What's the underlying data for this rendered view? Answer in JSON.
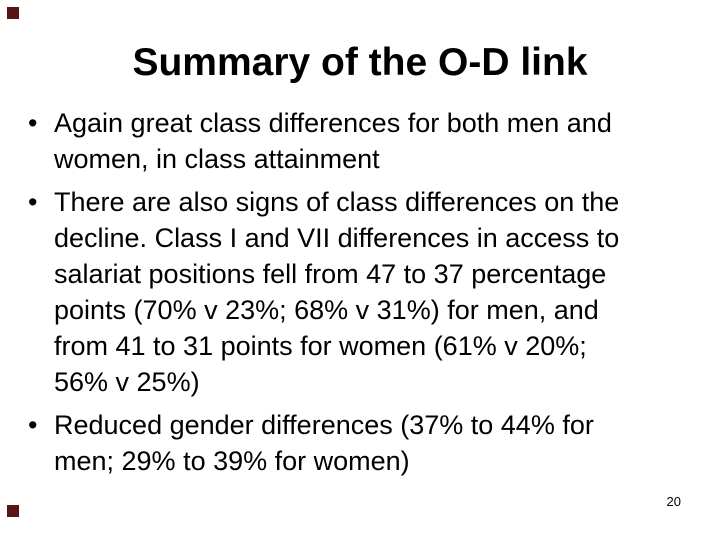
{
  "slide": {
    "title": "Summary of the O-D link",
    "bullet_char": "•",
    "bullets": [
      {
        "text": "Again great class differences for both men and\nwomen, in class attainment"
      },
      {
        "text": "There are also signs of class differences on the\ndecline. Class I and VII differences in access to\nsalariat positions fell from 47 to 37 percentage\npoints (70% v 23%; 68% v 31%) for men, and\nfrom 41 to 31 points for women (61% v 20%;\n56% v 25%)"
      },
      {
        "text": "Reduced gender differences (37% to 44% for\nmen; 29% to 39% for women)"
      }
    ],
    "page_number": "20",
    "colors": {
      "background": "#ffffff",
      "text": "#000000",
      "decor_square": "#5a1414"
    }
  }
}
